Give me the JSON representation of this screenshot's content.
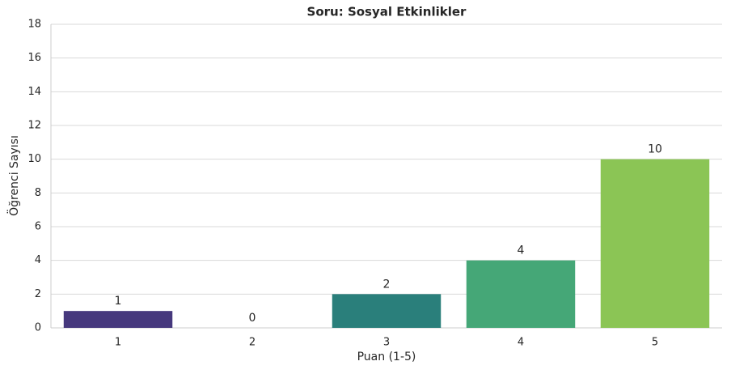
{
  "chart_data": {
    "type": "bar",
    "title": "Soru: Sosyal Etkinlikler",
    "xlabel": "Puan (1-5)",
    "ylabel": "Öğrenci Sayısı",
    "categories": [
      "1",
      "2",
      "3",
      "4",
      "5"
    ],
    "values": [
      1,
      0,
      2,
      4,
      10
    ],
    "colors": [
      "#46387d",
      "#3b5e8c",
      "#2a7f7b",
      "#45a777",
      "#8bc555"
    ],
    "ylim": [
      0,
      18
    ],
    "yticks": [
      0,
      2,
      4,
      6,
      8,
      10,
      12,
      14,
      16,
      18
    ],
    "grid": true
  }
}
